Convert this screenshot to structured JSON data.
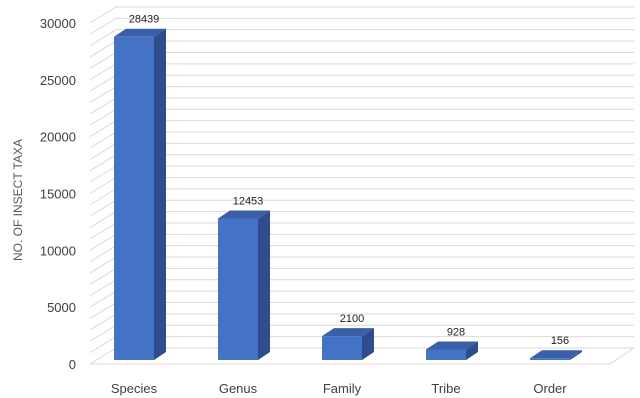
{
  "chart_data": {
    "type": "bar",
    "categories": [
      "Species",
      "Genus",
      "Family",
      "Tribe",
      "Order"
    ],
    "values": [
      28439,
      12453,
      2100,
      928,
      156
    ],
    "title": "",
    "xlabel": "",
    "ylabel": "NO. OF INSECT TAXA",
    "ylim": [
      0,
      30000
    ],
    "yticks": [
      0,
      5000,
      10000,
      15000,
      20000,
      25000,
      30000
    ],
    "data_labels": [
      "28439",
      "12453",
      "2100",
      "928",
      "156"
    ],
    "grid": true,
    "legend": "none",
    "style": "3d-column",
    "colors": {
      "bar_front": "#4472C4",
      "bar_side": "#2F4D8C",
      "bar_top": "#3A5FA8",
      "grid": "#D9D9D9",
      "text": "#404040"
    }
  }
}
